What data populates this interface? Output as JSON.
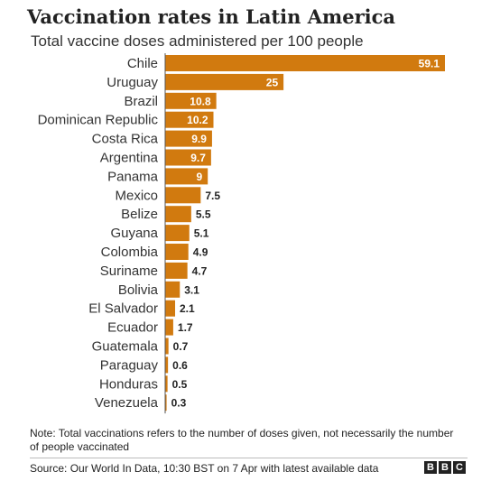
{
  "chart_data": {
    "type": "bar",
    "orientation": "horizontal",
    "title": "Vaccination rates in Latin America",
    "subtitle": "Total vaccine doses administered per 100 people",
    "categories": [
      "Chile",
      "Uruguay",
      "Brazil",
      "Dominican Republic",
      "Costa Rica",
      "Argentina",
      "Panama",
      "Mexico",
      "Belize",
      "Guyana",
      "Colombia",
      "Suriname",
      "Bolivia",
      "El Salvador",
      "Ecuador",
      "Guatemala",
      "Paraguay",
      "Honduras",
      "Venezuela"
    ],
    "values": [
      59.1,
      25,
      10.8,
      10.2,
      9.9,
      9.7,
      9,
      7.5,
      5.5,
      5.1,
      4.9,
      4.7,
      3.1,
      2.1,
      1.7,
      0.7,
      0.6,
      0.5,
      0.3
    ],
    "value_labels": [
      "59.1",
      "25",
      "10.8",
      "10.2",
      "9.9",
      "9.7",
      "9",
      "7.5",
      "5.5",
      "5.1",
      "4.9",
      "4.7",
      "3.1",
      "2.1",
      "1.7",
      "0.7",
      "0.6",
      "0.5",
      "0.3"
    ],
    "bar_color": "#d17a0f",
    "xlim": [
      0,
      59.1
    ]
  },
  "footer": {
    "note": "Note: Total vaccinations refers to the number of doses given, not necessarily the number of people vaccinated",
    "source": "Source: Our World In Data, 10:30 BST on 7 Apr with latest available data",
    "logo_letters": [
      "B",
      "B",
      "C"
    ]
  }
}
